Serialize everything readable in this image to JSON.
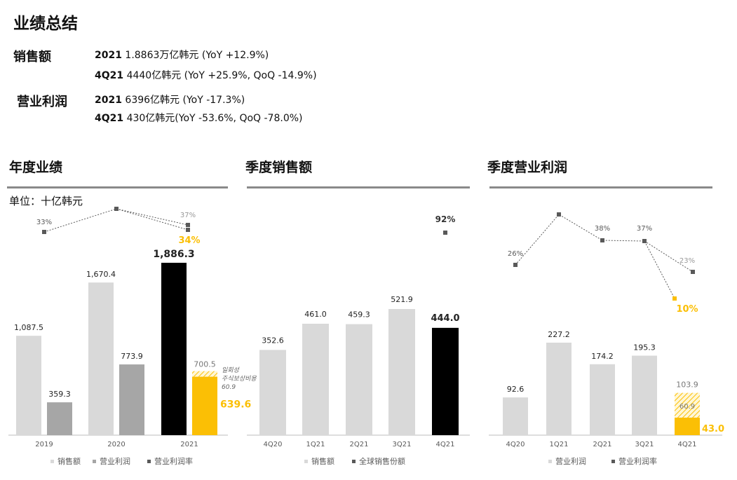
{
  "page_title": "业绩总结",
  "summary": {
    "sales": {
      "label": "销售额",
      "lines": [
        {
          "period": "2021",
          "text": "1.8863万亿韩元 (YoY +12.9%)"
        },
        {
          "period": "4Q21",
          "text": "4440亿韩元 (YoY +25.9%, QoQ -14.9%)"
        }
      ]
    },
    "op_profit": {
      "label": "营业利润",
      "lines": [
        {
          "period": "2021",
          "text": "6396亿韩元 (YoY -17.3%)"
        },
        {
          "period": "4Q21",
          "text": "430亿韩元(YoY -53.6%, QoQ -78.0%)"
        }
      ]
    }
  },
  "sections": {
    "annual": "年度业绩",
    "quarterly_sales": "季度销售额",
    "quarterly_profit": "季度营业利润"
  },
  "unit": "单位：十亿韩元",
  "colors": {
    "light_bar": "#d9d9d9",
    "mid_bar": "#a6a6a6",
    "black_bar": "#000000",
    "highlight": "#fbbf05",
    "marker": "#595959"
  },
  "chart_data": [
    {
      "type": "bar",
      "name": "annual",
      "categories": [
        "2019",
        "2020",
        "2021"
      ],
      "series": [
        {
          "name": "销售额",
          "values": [
            1087.5,
            1670.4,
            1886.3
          ],
          "labels": [
            "1,087.5",
            "1,670.4",
            "1,886.3"
          ]
        },
        {
          "name": "营业利润",
          "values": [
            359.3,
            773.9,
            639.6
          ],
          "labels": [
            "359.3",
            "773.9",
            "639.6"
          ]
        },
        {
          "name": "营业利润率",
          "values": [
            33,
            null,
            34
          ],
          "labels": [
            "33%",
            "",
            "34%"
          ]
        }
      ],
      "adjusted_2021": {
        "op_profit": 700.5,
        "op_profit_label": "700.5",
        "margin_label": "37%",
        "one_off_note": [
          "일회성",
          "주식보상비용",
          "60.9"
        ]
      },
      "legend": [
        "销售额",
        "营业利润",
        "营业利润率"
      ]
    },
    {
      "type": "bar",
      "name": "quarterly_sales",
      "categories": [
        "4Q20",
        "1Q21",
        "2Q21",
        "3Q21",
        "4Q21"
      ],
      "series": [
        {
          "name": "销售额",
          "values": [
            352.6,
            461.0,
            459.3,
            521.9,
            444.0
          ],
          "labels": [
            "352.6",
            "461.0",
            "459.3",
            "521.9",
            "444.0"
          ]
        },
        {
          "name": "全球销售份额",
          "values": [
            null,
            null,
            null,
            null,
            92
          ],
          "labels": [
            "",
            "",
            "",
            "",
            "92%"
          ]
        }
      ],
      "legend": [
        "销售额",
        "全球销售份额"
      ]
    },
    {
      "type": "bar",
      "name": "quarterly_profit",
      "categories": [
        "4Q20",
        "1Q21",
        "2Q21",
        "3Q21",
        "4Q21"
      ],
      "series": [
        {
          "name": "营业利润",
          "values": [
            92.6,
            227.2,
            174.2,
            195.3,
            43.0
          ],
          "labels": [
            "92.6",
            "227.2",
            "174.2",
            "195.3",
            "43.0"
          ]
        },
        {
          "name": "营业利润率",
          "values": [
            26,
            null,
            38,
            37,
            10
          ],
          "labels": [
            "26%",
            "",
            "38%",
            "37%",
            "10%"
          ]
        }
      ],
      "adjusted_4Q21": {
        "op_profit": 103.9,
        "op_profit_label": "103.9",
        "one_off": 60.9,
        "one_off_label": "60.9",
        "margin_label": "23%"
      },
      "legend": [
        "营业利润",
        "营业利润率"
      ]
    }
  ]
}
